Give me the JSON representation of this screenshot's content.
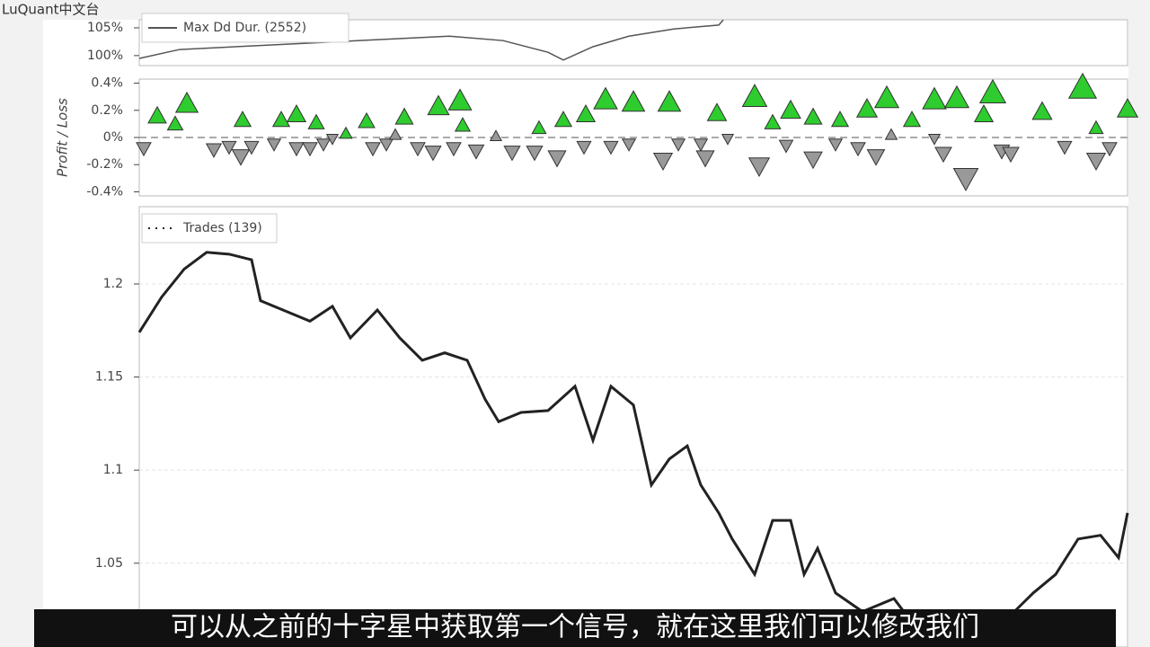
{
  "watermark": "LuQuant中文台",
  "subtitle": "可以从之前的十字星中获取第一个信号，就在这里我们可以修改我们",
  "chart_data": [
    {
      "type": "line",
      "ylim": [
        98.2,
        106.45
      ],
      "yticks": [
        {
          "value": 105,
          "label": "105%"
        },
        {
          "value": 100,
          "label": "100%"
        }
      ],
      "xlim": [
        0,
        1100
      ],
      "series": [
        {
          "name": "Max Dd Dur. (2552)",
          "color": "#555555",
          "x": [
            0,
            45,
            145,
            245,
            345,
            405,
            455,
            472,
            505,
            545,
            595,
            645,
            650
          ],
          "values": [
            99.5,
            101.1,
            101.9,
            102.7,
            103.5,
            102.7,
            100.6,
            99.2,
            101.6,
            103.5,
            104.8,
            105.5,
            106.4
          ]
        }
      ]
    },
    {
      "type": "scatter",
      "ylabel": "Profit / Loss",
      "ylim": [
        -0.43,
        0.43
      ],
      "yticks": [
        {
          "value": 0.4,
          "label": "0.4%"
        },
        {
          "value": 0.2,
          "label": "0.2%"
        },
        {
          "value": 0,
          "label": "0%"
        },
        {
          "value": -0.2,
          "label": "-0.2%"
        },
        {
          "value": -0.4,
          "label": "-0.4%"
        }
      ],
      "xlim": [
        0,
        1100
      ],
      "series": [
        {
          "color": "#2ecc2e",
          "x": [
            20,
            40,
            53,
            115,
            158,
            175,
            197,
            230,
            253,
            295,
            333,
            357,
            360,
            445,
            472,
            497,
            519,
            550,
            590,
            643,
            685,
            705,
            725,
            750,
            780,
            810,
            832,
            860,
            885,
            910,
            940,
            950,
            1005,
            1050,
            1065,
            1100
          ],
          "values": [
            0.16,
            0.1,
            0.25,
            0.13,
            0.13,
            0.17,
            0.11,
            0.03,
            0.12,
            0.15,
            0.23,
            0.27,
            0.09,
            0.07,
            0.13,
            0.17,
            0.28,
            0.26,
            0.26,
            0.18,
            0.3,
            0.11,
            0.2,
            0.15,
            0.13,
            0.21,
            0.29,
            0.13,
            0.28,
            0.29,
            0.17,
            0.33,
            0.19,
            0.37,
            0.07,
            0.21
          ]
        },
        {
          "color": "#999999",
          "x": [
            5,
            83,
            100,
            113,
            125,
            150,
            175,
            190,
            205,
            215,
            260,
            275,
            285,
            310,
            327,
            350,
            375,
            397,
            415,
            440,
            465,
            495,
            525,
            545,
            583,
            600,
            625,
            630,
            655,
            690,
            720,
            750,
            775,
            800,
            820,
            837,
            885,
            895,
            920,
            960,
            970,
            1030,
            1065,
            1080
          ],
          "values": [
            -0.08,
            -0.09,
            -0.07,
            -0.14,
            -0.07,
            -0.05,
            -0.08,
            -0.08,
            -0.05,
            -0.01,
            -0.08,
            -0.05,
            0.02,
            -0.08,
            -0.11,
            -0.08,
            -0.1,
            0.01,
            -0.11,
            -0.11,
            -0.15,
            -0.07,
            -0.07,
            -0.05,
            -0.17,
            -0.05,
            -0.05,
            -0.15,
            -0.01,
            -0.21,
            -0.06,
            -0.16,
            -0.05,
            -0.08,
            -0.14,
            0.02,
            -0.01,
            -0.12,
            -0.3,
            -0.1,
            -0.12,
            -0.07,
            -0.17,
            -0.08
          ]
        }
      ]
    },
    {
      "type": "line",
      "ylim": [
        1.005,
        1.2415
      ],
      "yticks": [
        1.2,
        1.15,
        1.1,
        1.05
      ],
      "xlim": [
        0,
        1100
      ],
      "grid": true,
      "series": [
        {
          "name": "Trades (139)",
          "color": "#222222",
          "x": [
            0,
            25,
            50,
            75,
            100,
            125,
            135,
            160,
            190,
            215,
            235,
            265,
            290,
            315,
            340,
            365,
            385,
            400,
            425,
            455,
            485,
            505,
            525,
            550,
            570,
            590,
            610,
            625,
            645,
            660,
            685,
            705,
            725,
            740,
            755,
            775,
            805,
            840,
            865,
            905,
            955,
            995,
            1020,
            1045,
            1070,
            1090,
            1100
          ],
          "values": [
            1.174,
            1.193,
            1.208,
            1.217,
            1.216,
            1.213,
            1.191,
            1.186,
            1.18,
            1.188,
            1.171,
            1.186,
            1.171,
            1.159,
            1.163,
            1.159,
            1.138,
            1.126,
            1.131,
            1.132,
            1.145,
            1.116,
            1.145,
            1.135,
            1.092,
            1.106,
            1.113,
            1.092,
            1.077,
            1.063,
            1.044,
            1.073,
            1.073,
            1.044,
            1.058,
            1.034,
            1.024,
            1.031,
            1.015,
            1.01,
            1.015,
            1.034,
            1.044,
            1.063,
            1.065,
            1.053,
            1.077
          ]
        }
      ]
    }
  ]
}
